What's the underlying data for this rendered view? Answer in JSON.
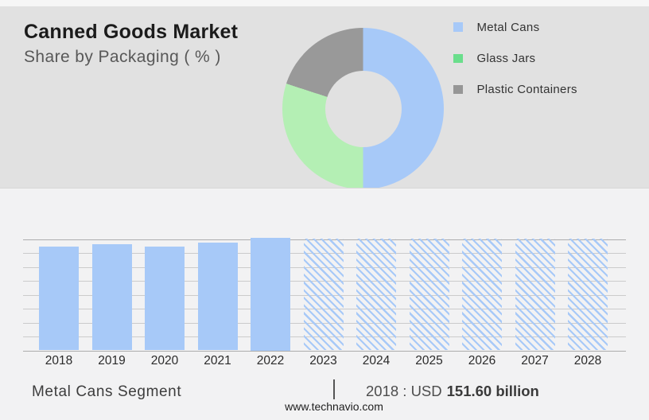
{
  "page": {
    "header": {
      "title": "Canned Goods Market",
      "subtitle": "Share by Packaging ( % )"
    },
    "bottom": {
      "segment_label": "Metal Cans Segment",
      "separator": "|",
      "value_text": "2018 : USD",
      "value_bold": "151.60 billion"
    },
    "footer": {
      "website": "www.technavio.com"
    }
  },
  "colors": {
    "accent_blue": "#A7C9F8",
    "donut_green": "#B4EFB4",
    "legend_green": "#6ADE8C",
    "gray": "#999999",
    "header_bg": "#E1E1E1",
    "chart_bg": "#F2F2F3",
    "gridline": "#CBCBCB",
    "gridline_edge": "#ADADAD"
  },
  "chart_data": [
    {
      "type": "pie",
      "variant": "donut",
      "title": "Canned Goods Market — Share by Packaging ( % )",
      "unit": "%",
      "direction": "clockwise",
      "start_angle_deg": 0,
      "legend_position": "right",
      "slices": [
        {
          "label": "Metal Cans",
          "value": 50,
          "color": "#A7C9F8",
          "legend_color": "#A7C9F8"
        },
        {
          "label": "Glass Jars",
          "value": 30,
          "color": "#B4EFB4",
          "legend_color": "#6ADE8C"
        },
        {
          "label": "Plastic Containers",
          "value": 20,
          "color": "#999999",
          "legend_color": "#969696"
        }
      ]
    },
    {
      "type": "bar",
      "title": "Metal Cans Segment market size, 2018–2028 (actual vs hatched forecast)",
      "categories": [
        "2018",
        "2019",
        "2020",
        "2021",
        "2022",
        "2023",
        "2024",
        "2025",
        "2026",
        "2027",
        "2028"
      ],
      "values": [
        92,
        94.5,
        92.5,
        96,
        100,
        99.5,
        99.5,
        99.5,
        99.5,
        99.5,
        99.5
      ],
      "value_scale": "relative bar height as % of tallest bar (no y-axis values shown)",
      "bar_styles": [
        "solid",
        "solid",
        "solid",
        "solid",
        "solid",
        "hatched",
        "hatched",
        "hatched",
        "hatched",
        "hatched",
        "hatched"
      ],
      "solid_color": "#A7C9F8",
      "hatch_color": "#A7C9F8",
      "grid": true,
      "xlabel": "",
      "ylabel": "",
      "annotation": "2018 : USD 151.60 billion"
    }
  ]
}
